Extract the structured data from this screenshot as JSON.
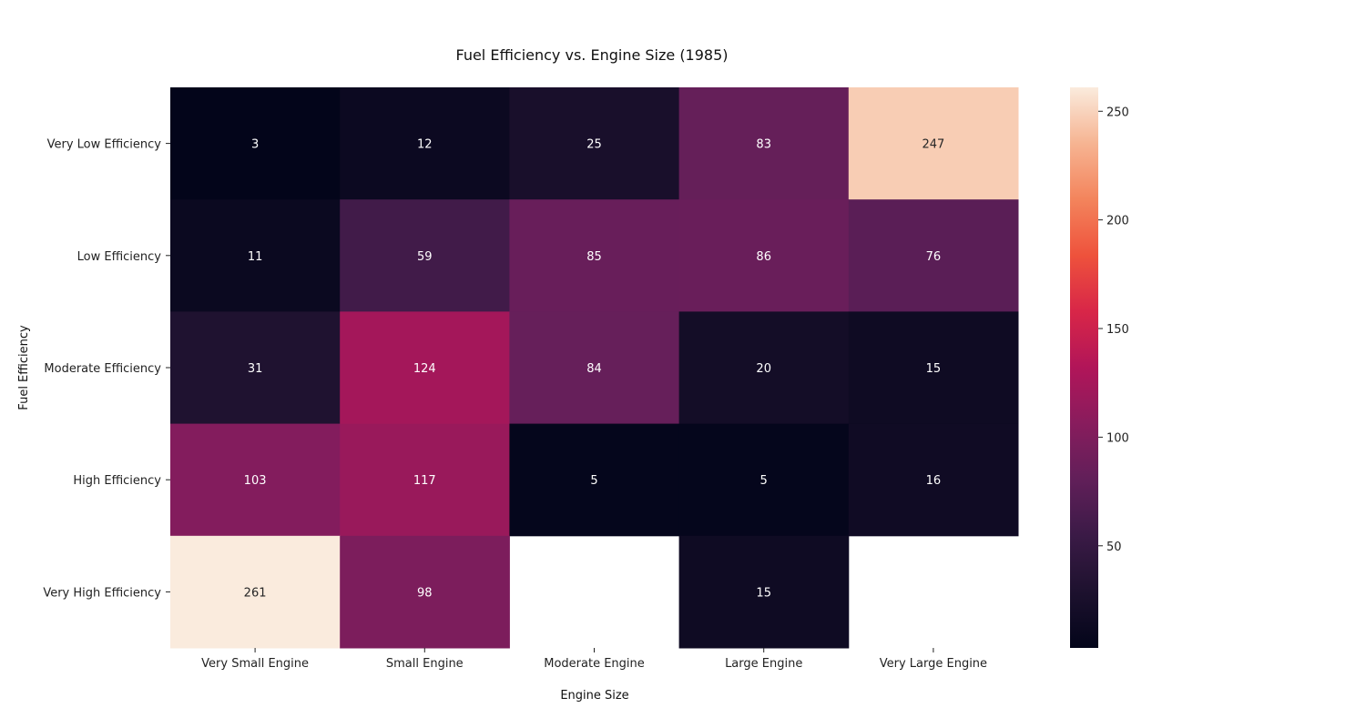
{
  "chart_data": {
    "type": "heatmap",
    "title": "Fuel Efficiency vs. Engine Size (1985)",
    "xlabel": "Engine Size",
    "ylabel": "Fuel Efficiency",
    "x_categories": [
      "Very Small Engine",
      "Small Engine",
      "Moderate Engine",
      "Large Engine",
      "Very Large Engine"
    ],
    "y_categories": [
      "Very Low Efficiency",
      "Low Efficiency",
      "Moderate Efficiency",
      "High Efficiency",
      "Very High Efficiency"
    ],
    "values": [
      [
        3,
        12,
        25,
        83,
        247
      ],
      [
        11,
        59,
        85,
        86,
        76
      ],
      [
        31,
        124,
        84,
        20,
        15
      ],
      [
        103,
        117,
        5,
        5,
        16
      ],
      [
        261,
        98,
        null,
        15,
        null
      ]
    ],
    "colorbar": {
      "min": 3,
      "max": 261,
      "ticks": [
        50,
        100,
        150,
        200,
        250
      ],
      "colormap": "rocket"
    }
  }
}
